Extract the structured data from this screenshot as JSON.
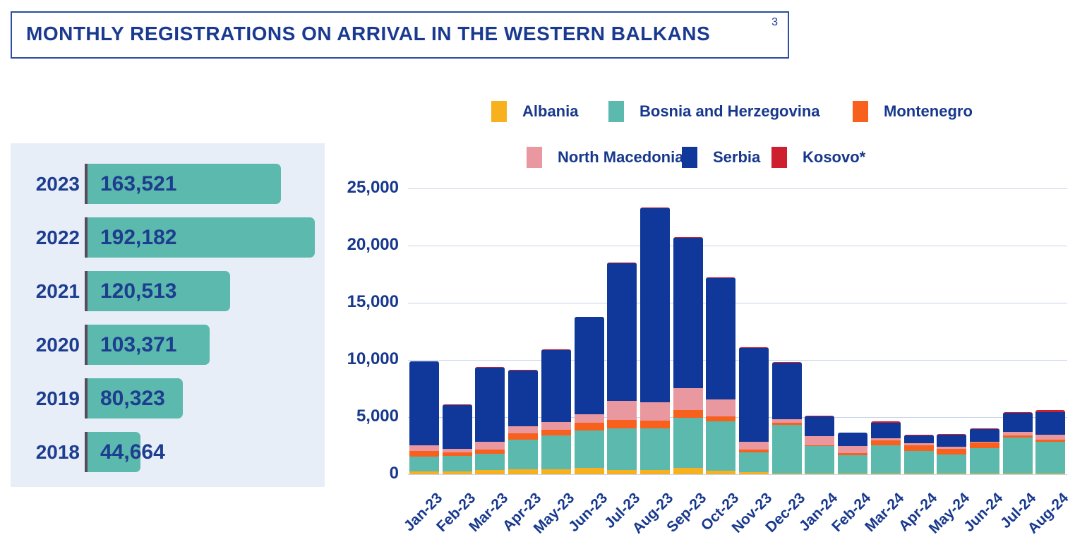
{
  "page": {
    "title": "MONTHLY REGISTRATIONS ON ARRIVAL IN THE WESTERN BALKANS",
    "title_superscript": "3"
  },
  "yearly_totals": {
    "rows": [
      {
        "year": "2023",
        "label": "163,521",
        "value": 163521
      },
      {
        "year": "2022",
        "label": "192,182",
        "value": 192182
      },
      {
        "year": "2021",
        "label": "120,513",
        "value": 120513
      },
      {
        "year": "2020",
        "label": "103,371",
        "value": 103371
      },
      {
        "year": "2019",
        "label": "80,323",
        "value": 80323
      },
      {
        "year": "2018",
        "label": "44,664",
        "value": 44664
      }
    ],
    "max_value": 192182,
    "bar_color": "#5cb9ad",
    "panel_background": "#e8eef8"
  },
  "legend": {
    "items": [
      {
        "name": "Albania",
        "color": "#f8b11e"
      },
      {
        "name": "Bosnia and Herzegovina",
        "color": "#5cb9ad"
      },
      {
        "name": "Montenegro",
        "color": "#f8611d"
      },
      {
        "name": "North Macedonia",
        "color": "#e9989f"
      },
      {
        "name": "Serbia",
        "color": "#10389b"
      },
      {
        "name": "Kosovo*",
        "color": "#ce1f2e"
      }
    ]
  },
  "chart_data": {
    "type": "bar",
    "stacked": true,
    "title": "Monthly registrations on arrival in the Western Balkans",
    "xlabel": "",
    "ylabel": "",
    "ylim": [
      0,
      25000
    ],
    "ytick_interval": 5000,
    "ytick_labels": [
      "0",
      "5,000",
      "10,000",
      "15,000",
      "20,000",
      "25,000"
    ],
    "grid": true,
    "legend_position": "top",
    "categories": [
      "Jan-23",
      "Feb-23",
      "Mar-23",
      "Apr-23",
      "May-23",
      "Jun-23",
      "Jul-23",
      "Aug-23",
      "Sep-23",
      "Oct-23",
      "Nov-23",
      "Dec-23",
      "Jan-24",
      "Feb-24",
      "Mar-24",
      "Apr-24",
      "May-24",
      "Jun-24",
      "Jul-24",
      "Aug-24"
    ],
    "series": [
      {
        "name": "Albania",
        "color": "#f8b11e",
        "values": [
          230,
          220,
          375,
          420,
          460,
          540,
          375,
          400,
          580,
          330,
          160,
          50,
          50,
          50,
          50,
          50,
          50,
          50,
          50,
          50
        ]
      },
      {
        "name": "Bosnia and Herzegovina",
        "color": "#5cb9ad",
        "values": [
          1315,
          1405,
          1415,
          2620,
          2960,
          3290,
          3645,
          3600,
          4380,
          4270,
          1765,
          4295,
          2410,
          1620,
          2470,
          2010,
          1685,
          2255,
          3175,
          2810
        ]
      },
      {
        "name": "Montenegro",
        "color": "#f8611d",
        "values": [
          515,
          275,
          400,
          520,
          455,
          670,
          730,
          710,
          680,
          480,
          265,
          145,
          100,
          170,
          445,
          500,
          510,
          455,
          145,
          160
        ]
      },
      {
        "name": "North Macedonia",
        "color": "#e9989f",
        "values": [
          500,
          350,
          640,
          630,
          725,
          750,
          1670,
          1560,
          1920,
          1460,
          680,
          310,
          770,
          640,
          200,
          160,
          145,
          100,
          345,
          450
        ]
      },
      {
        "name": "Serbia",
        "color": "#10389b",
        "values": [
          7290,
          3820,
          6490,
          4910,
          6250,
          8500,
          12020,
          17020,
          13130,
          10610,
          8190,
          4960,
          1740,
          1140,
          1335,
          680,
          1070,
          1100,
          1685,
          1980
        ]
      },
      {
        "name": "Kosovo*",
        "color": "#ce1f2e",
        "values": [
          50,
          30,
          50,
          50,
          50,
          50,
          60,
          60,
          60,
          50,
          40,
          40,
          30,
          30,
          150,
          30,
          40,
          40,
          50,
          200
        ]
      }
    ],
    "approx_totals": [
      9900,
      6100,
      9370,
      9150,
      10900,
      13800,
      18500,
      23350,
      20750,
      17200,
      11100,
      9800,
      5100,
      3650,
      4650,
      3430,
      3500,
      4000,
      5450,
      5650
    ]
  }
}
